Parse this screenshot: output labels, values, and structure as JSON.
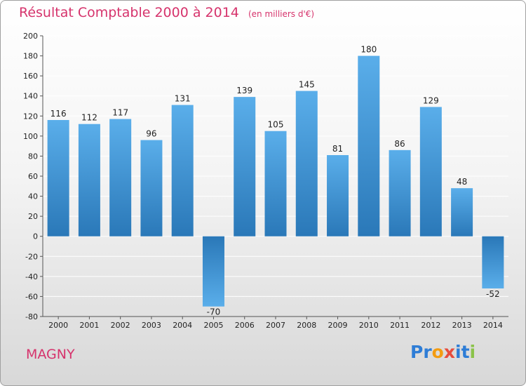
{
  "page": {
    "title": "Résultat Comptable 2000 à 2014",
    "subtitle": "(en milliers d'€)",
    "town": "MAGNY",
    "logo": {
      "text": "Proxiti",
      "letters": [
        "P",
        "r",
        "o",
        "x",
        "i",
        "t",
        "i"
      ],
      "colors": [
        "#2e7dd6",
        "#2e7dd6",
        "#f39c12",
        "#e74c3c",
        "#2e7dd6",
        "#2e7dd6",
        "#8bc34a"
      ]
    }
  },
  "chart_data": {
    "type": "bar",
    "title": "Résultat Comptable 2000 à 2014",
    "ylabel": "en milliers d'€",
    "xlabel": "",
    "categories": [
      "2000",
      "2001",
      "2002",
      "2003",
      "2004",
      "2005",
      "2006",
      "2007",
      "2008",
      "2009",
      "2010",
      "2011",
      "2012",
      "2013",
      "2014"
    ],
    "values": [
      116,
      112,
      117,
      96,
      131,
      -70,
      139,
      105,
      145,
      81,
      180,
      86,
      129,
      48,
      -52
    ],
    "ylim": [
      -80,
      200
    ],
    "yticks": [
      200,
      180,
      160,
      140,
      120,
      100,
      80,
      60,
      40,
      20,
      0,
      -20,
      -40,
      -60,
      -80
    ],
    "grid": true,
    "colors": {
      "bar_top": "#5aaeea",
      "bar_bottom": "#2a78b8",
      "title": "#d6336c"
    }
  }
}
